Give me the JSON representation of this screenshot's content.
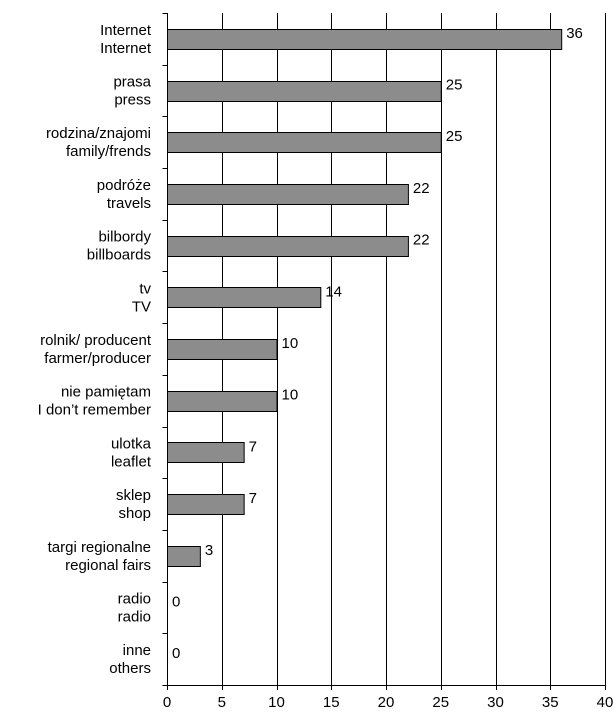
{
  "chart_data": {
    "type": "bar",
    "orientation": "horizontal",
    "categories": [
      [
        "Internet",
        "Internet"
      ],
      [
        "prasa",
        "press"
      ],
      [
        "rodzina/znajomi",
        "family/frends"
      ],
      [
        "podróże",
        "travels"
      ],
      [
        "bilbordy",
        "billboards"
      ],
      [
        "tv",
        "TV"
      ],
      [
        "rolnik/ producent",
        "farmer/producer"
      ],
      [
        "nie pamiętam",
        "I don’t remember"
      ],
      [
        "ulotka",
        "leaflet"
      ],
      [
        "sklep",
        "shop"
      ],
      [
        "targi regionalne",
        "regional fairs"
      ],
      [
        "radio",
        "radio"
      ],
      [
        "inne",
        "others"
      ]
    ],
    "values": [
      36,
      25,
      25,
      22,
      22,
      14,
      10,
      10,
      7,
      7,
      3,
      0,
      0
    ],
    "value_labels": [
      "36",
      "25",
      "25",
      "22",
      "22",
      "14",
      "10",
      "10",
      "7",
      "7",
      "3",
      "0",
      "0"
    ],
    "xlim": [
      0,
      40
    ],
    "xticks": [
      0,
      5,
      10,
      15,
      20,
      25,
      30,
      35,
      40
    ],
    "xtick_labels": [
      "0",
      "5",
      "10",
      "15",
      "20",
      "25",
      "30",
      "35",
      "40"
    ],
    "grid": "vertical",
    "legend": "none",
    "colors": {
      "bar": "#8c8c8c",
      "bar_edge": "#000000",
      "grid": "#000000"
    }
  }
}
